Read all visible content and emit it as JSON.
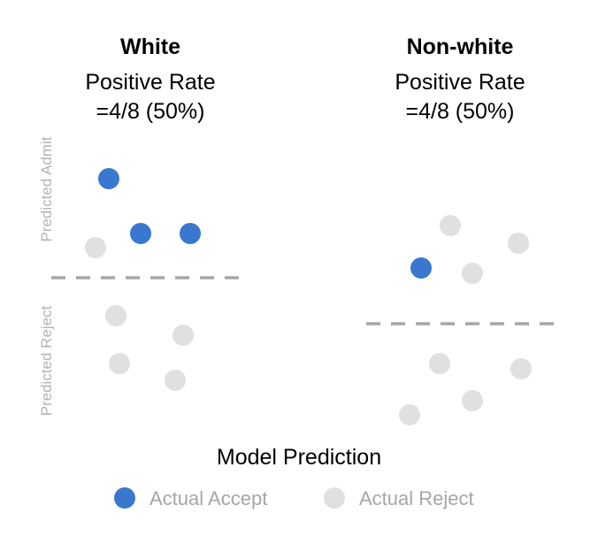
{
  "panels": [
    {
      "title": "White",
      "rate_label": "Positive Rate",
      "rate_value": "=4/8 (50%)",
      "points": [
        {
          "class": "accept",
          "side": "above"
        },
        {
          "class": "accept",
          "side": "above"
        },
        {
          "class": "accept",
          "side": "above"
        },
        {
          "class": "reject",
          "side": "above"
        },
        {
          "class": "reject",
          "side": "below"
        },
        {
          "class": "reject",
          "side": "below"
        },
        {
          "class": "reject",
          "side": "below"
        },
        {
          "class": "reject",
          "side": "below"
        }
      ]
    },
    {
      "title": "Non-white",
      "rate_label": "Positive Rate",
      "rate_value": "=4/8 (50%)",
      "points": [
        {
          "class": "accept",
          "side": "above"
        },
        {
          "class": "reject",
          "side": "above"
        },
        {
          "class": "reject",
          "side": "above"
        },
        {
          "class": "reject",
          "side": "above"
        },
        {
          "class": "reject",
          "side": "below"
        },
        {
          "class": "reject",
          "side": "below"
        },
        {
          "class": "reject",
          "side": "below"
        },
        {
          "class": "reject",
          "side": "below"
        }
      ]
    }
  ],
  "y_labels": {
    "top": "Predicted Admit",
    "bottom": "Predicted Reject"
  },
  "xlabel": "Model Prediction",
  "legend": [
    {
      "label": "Actual Accept",
      "color": "#3a78cf"
    },
    {
      "label": "Actual Reject",
      "color": "#e0e0e0"
    }
  ],
  "colors": {
    "accept": "#3a78cf",
    "reject": "#e0e0e0",
    "divider": "#a6a6a6"
  }
}
